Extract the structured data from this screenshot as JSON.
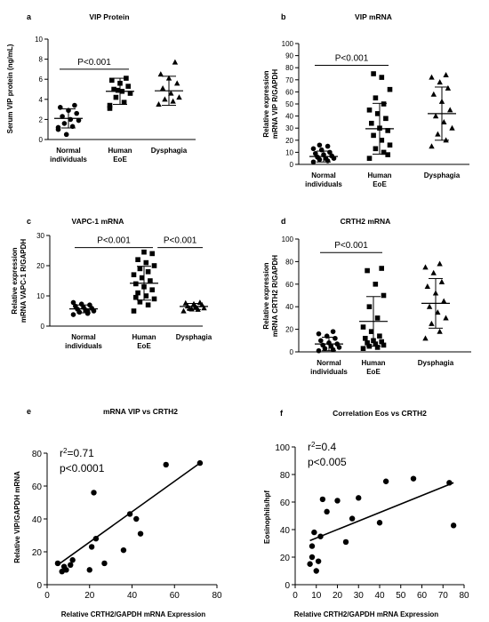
{
  "chart_data": [
    {
      "panel": "a",
      "type": "scatter",
      "title": "VIP Protein",
      "ylabel": "Serum VIP protein (ng/mL)",
      "ylim": [
        0,
        10
      ],
      "yticks": [
        0,
        2,
        4,
        6,
        8,
        10
      ],
      "categories": [
        [
          "Normal",
          "individuals"
        ],
        [
          "Human",
          "EoE"
        ],
        [
          "Dysphagia"
        ]
      ],
      "series": [
        {
          "marker": "circle",
          "values": [
            1.0,
            1.3,
            1.6,
            1.9,
            2.0,
            2.3,
            2.6,
            2.9,
            3.2,
            3.4,
            0.5,
            1.2
          ],
          "mean": 2.1,
          "sd": 0.95
        },
        {
          "marker": "square",
          "values": [
            3.4,
            3.7,
            4.2,
            4.6,
            4.8,
            5.0,
            5.3,
            5.6,
            5.9,
            6.1,
            4.9,
            3.1
          ],
          "mean": 4.8,
          "sd": 1.3
        },
        {
          "marker": "triangle",
          "values": [
            3.5,
            3.8,
            4.0,
            4.2,
            4.6,
            5.1,
            5.6,
            6.1,
            6.5,
            7.7
          ],
          "mean": 4.85,
          "sd": 1.45
        }
      ],
      "annotations": [
        {
          "text": "P<0.001",
          "from": 0,
          "to": 1,
          "y": 7.0
        }
      ]
    },
    {
      "panel": "b",
      "type": "scatter",
      "title": "VIP mRNA",
      "ylabel": [
        "Relative expression",
        "mRNA VIP R/GAPDH"
      ],
      "ylim": [
        0,
        100
      ],
      "yticks": [
        0,
        10,
        20,
        30,
        40,
        50,
        60,
        70,
        80,
        90,
        100
      ],
      "categories": [
        [
          "Normal",
          "individuals"
        ],
        [
          "Human",
          "EoE"
        ],
        [
          "Dysphagia"
        ]
      ],
      "series": [
        {
          "marker": "circle",
          "values": [
            2,
            3,
            4,
            5,
            5,
            6,
            7,
            8,
            9,
            10,
            12,
            13,
            15,
            16
          ],
          "mean": 6.5,
          "sd": 4.5
        },
        {
          "marker": "square",
          "values": [
            5,
            10,
            13,
            16,
            20,
            24,
            28,
            30,
            34,
            38,
            42,
            45,
            50,
            55,
            62,
            72,
            75,
            8
          ],
          "mean": 29.5,
          "sd": 21
        },
        {
          "marker": "triangle",
          "values": [
            15,
            20,
            25,
            30,
            35,
            40,
            45,
            52,
            58,
            63,
            68,
            72,
            74
          ],
          "mean": 42,
          "sd": 22
        }
      ],
      "annotations": [
        {
          "text": "P<0.001",
          "from": 0,
          "to": 1,
          "y": 82
        }
      ]
    },
    {
      "panel": "c",
      "type": "scatter",
      "title": "VAPC-1 mRNA",
      "ylabel": [
        "Relative expression",
        "mRNA VAPC-1 R/GAPDH"
      ],
      "ylim": [
        0,
        30
      ],
      "yticks": [
        0,
        10,
        20,
        30
      ],
      "categories": [
        [
          "Normal",
          "individuals"
        ],
        [
          "Human",
          "EoE"
        ],
        [
          "Dysphagia"
        ]
      ],
      "series": [
        {
          "marker": "circle",
          "values": [
            3.8,
            4.2,
            4.6,
            5.0,
            5.3,
            5.6,
            5.9,
            6.2,
            6.6,
            7.0,
            7.3,
            7.8,
            4.9
          ],
          "mean": 5.7,
          "sd": 1.3
        },
        {
          "marker": "square",
          "values": [
            5,
            7,
            8,
            9,
            10,
            11,
            12,
            13,
            14,
            15,
            16,
            17,
            18,
            19,
            20,
            21,
            22,
            24,
            24.5,
            9.5
          ],
          "mean": 14.2,
          "sd": 5.6
        },
        {
          "marker": "triangle",
          "values": [
            5.0,
            5.5,
            5.8,
            6.0,
            6.3,
            6.6,
            7.0,
            7.3,
            7.6,
            7.8,
            5.6
          ],
          "mean": 6.5,
          "sd": 1.0
        }
      ],
      "annotations": [
        {
          "text": "P<0.001",
          "from": 0,
          "to": 1,
          "y": 26
        },
        {
          "text": "P<0.001",
          "from": 1.45,
          "to": 2.4,
          "y": 26
        }
      ]
    },
    {
      "panel": "d",
      "type": "scatter",
      "title": "CRTH2 mRNA",
      "ylabel": [
        "Relative expression",
        "mRNA CRTH2 R/GAPDH"
      ],
      "ylim": [
        0,
        100
      ],
      "yticks": [
        0,
        20,
        40,
        60,
        80,
        100
      ],
      "categories": [
        [
          "Normal",
          "individuals"
        ],
        [
          "Human",
          "EoE"
        ],
        [
          "Dysphagia"
        ]
      ],
      "series": [
        {
          "marker": "circle",
          "values": [
            1,
            2,
            3,
            4,
            5,
            6,
            7,
            8,
            10,
            12,
            14,
            16,
            18
          ],
          "mean": 7,
          "sd": 6
        },
        {
          "marker": "square",
          "values": [
            3,
            4,
            5,
            6,
            7,
            8,
            9,
            10,
            12,
            14,
            18,
            22,
            30,
            40,
            50,
            60,
            72,
            74
          ],
          "mean": 27,
          "sd": 22
        },
        {
          "marker": "triangle",
          "values": [
            12,
            18,
            25,
            30,
            35,
            40,
            45,
            52,
            58,
            62,
            70,
            75,
            78
          ],
          "mean": 43,
          "sd": 22
        }
      ],
      "annotations": [
        {
          "text": "P<0.001",
          "from": 0,
          "to": 1,
          "y": 88
        }
      ]
    },
    {
      "panel": "e",
      "type": "scatter",
      "title": "mRNA VIP vs CRTH2",
      "xlabel": "Relative CRTH2/GAPDH mRNA Expression",
      "ylabel": "Relative VIP/GAPDH mRNA",
      "xlim": [
        0,
        80
      ],
      "ylim": [
        0,
        80
      ],
      "xticks": [
        0,
        20,
        40,
        60,
        80
      ],
      "yticks": [
        0,
        20,
        40,
        60,
        80
      ],
      "points": [
        [
          5,
          13
        ],
        [
          7,
          8
        ],
        [
          8,
          11
        ],
        [
          9,
          9
        ],
        [
          11,
          12
        ],
        [
          12,
          15
        ],
        [
          20,
          9
        ],
        [
          21,
          23
        ],
        [
          22,
          56
        ],
        [
          23,
          28
        ],
        [
          27,
          13
        ],
        [
          36,
          21
        ],
        [
          39,
          43
        ],
        [
          42,
          40
        ],
        [
          44,
          31
        ],
        [
          56,
          73
        ],
        [
          72,
          74
        ]
      ],
      "fit": [
        [
          5,
          12
        ],
        [
          72,
          74
        ]
      ],
      "stats": {
        "r2_label": "r",
        "r2_value": "=0.71",
        "p": "p<0.0001"
      }
    },
    {
      "panel": "f",
      "type": "scatter",
      "title": "Correlation Eos vs CRTH2",
      "xlabel": "Relative CRTH2/GAPDH mRNA Expression",
      "ylabel": "Eosinophils/hpf",
      "xlim": [
        0,
        80
      ],
      "ylim": [
        0,
        100
      ],
      "xticks": [
        0,
        10,
        20,
        30,
        40,
        50,
        60,
        70,
        80
      ],
      "yticks": [
        0,
        20,
        40,
        60,
        80,
        100
      ],
      "points": [
        [
          7,
          15
        ],
        [
          8,
          20
        ],
        [
          8,
          28
        ],
        [
          9,
          38
        ],
        [
          10,
          10
        ],
        [
          11,
          17
        ],
        [
          12,
          35
        ],
        [
          13,
          62
        ],
        [
          15,
          53
        ],
        [
          20,
          61
        ],
        [
          24,
          31
        ],
        [
          27,
          48
        ],
        [
          30,
          63
        ],
        [
          40,
          45
        ],
        [
          43,
          75
        ],
        [
          56,
          77
        ],
        [
          73,
          74
        ],
        [
          75,
          43
        ]
      ],
      "fit": [
        [
          7,
          32
        ],
        [
          75,
          74
        ]
      ],
      "stats": {
        "r2_label": "r",
        "r2_value": "=0.4",
        "p": "p<0.005"
      }
    }
  ]
}
